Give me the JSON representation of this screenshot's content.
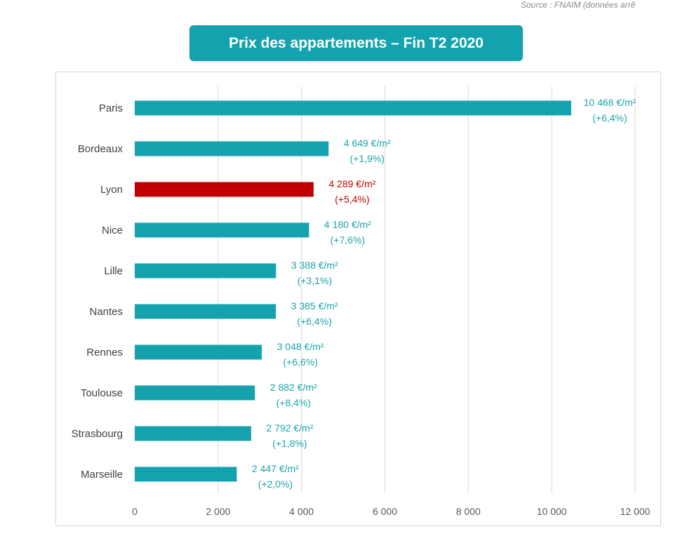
{
  "source_note": "Source : FNAIM (données arrê",
  "title": "Prix des appartements  – Fin T2 2020",
  "colors": {
    "bar": "#14a3ae",
    "highlight": "#c00000",
    "grid": "#d9d9d9",
    "title_bg": "#14a3ae"
  },
  "chart_data": {
    "type": "bar",
    "orientation": "horizontal",
    "title": "Prix des appartements  – Fin T2 2020",
    "xlabel": "",
    "ylabel": "",
    "xlim": [
      0,
      12000
    ],
    "grid": true,
    "categories": [
      "Paris",
      "Bordeaux",
      "Lyon",
      "Nice",
      "Lille",
      "Nantes",
      "Rennes",
      "Toulouse",
      "Strasbourg",
      "Marseille"
    ],
    "values": [
      10468,
      4649,
      4289,
      4180,
      3388,
      3385,
      3048,
      2882,
      2792,
      2447
    ],
    "value_labels": [
      "10 468 €/m²",
      "4 649 €/m²",
      "4 289 €/m²",
      "4 180 €/m²",
      "3 388 €/m²",
      "3 385 €/m²",
      "3 048 €/m²",
      "2 882 €/m²",
      "2 792 €/m²",
      "2 447 €/m²"
    ],
    "change_labels": [
      "(+6,4%)",
      "(+1,9%)",
      "(+5,4%)",
      "(+7,6%)",
      "(+3,1%)",
      "(+6,4%)",
      "(+6,6%)",
      "(+8,4%)",
      "(+1,8%)",
      "(+2,0%)"
    ],
    "highlight": [
      "Lyon"
    ],
    "ticks": [
      0,
      2000,
      4000,
      6000,
      8000,
      10000,
      12000
    ],
    "tick_labels": [
      "0",
      "2 000",
      "4 000",
      "6 000",
      "8 000",
      "10 000",
      "12 000"
    ]
  }
}
